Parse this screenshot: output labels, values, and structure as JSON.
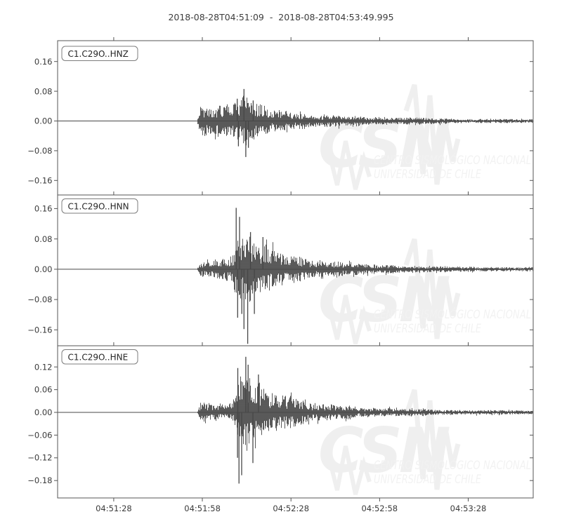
{
  "title": "2018-08-28T04:51:09  -  2018-08-28T04:53:49.995",
  "colors": {
    "background": "#ffffff",
    "trace": "#474747",
    "frame": "#555555",
    "tick_label": "#3a3a3a",
    "watermark_logo": "#efefef",
    "watermark_text": "#f2f2f2"
  },
  "watermark": {
    "logo": "CSN",
    "line1": "CENTRO SISMOLÓGICO NACIONAL",
    "line2": "UNIVERSIDAD DE CHILE"
  },
  "chart_data": {
    "type": "line",
    "subtype": "seismogram-3-panels",
    "title": "2018-08-28T04:51:09  -  2018-08-28T04:53:49.995",
    "x_start": "2018-08-28T04:51:09",
    "x_end": "2018-08-28T04:53:49.995",
    "duration_s": 160.995,
    "grid": false,
    "legend": false,
    "xticks": [
      {
        "t": 19,
        "label": "04:51:28"
      },
      {
        "t": 49,
        "label": "04:51:58"
      },
      {
        "t": 79,
        "label": "04:52:28"
      },
      {
        "t": 109,
        "label": "04:52:58"
      },
      {
        "t": 139,
        "label": "04:53:28"
      }
    ],
    "panels": [
      {
        "label": "C1.C29O..HNZ",
        "ylim": [
          -0.199,
          0.216
        ],
        "yticks": [
          {
            "v": 0.16,
            "label": "0.16"
          },
          {
            "v": 0.08,
            "label": "0.08"
          },
          {
            "v": 0.0,
            "label": "0.00"
          },
          {
            "v": -0.08,
            "label": "−0.08"
          },
          {
            "v": -0.16,
            "label": "−0.16"
          }
        ],
        "onset_s": 47.5,
        "peak_value": 0.086,
        "peak_time_s": 63.1,
        "seed": 101,
        "envelope": [
          [
            0,
            0.0012
          ],
          [
            47.2,
            0.0012
          ],
          [
            47.9,
            0.036
          ],
          [
            50,
            0.042
          ],
          [
            53,
            0.038
          ],
          [
            56,
            0.047
          ],
          [
            59,
            0.05
          ],
          [
            61.5,
            0.058
          ],
          [
            63.4,
            0.08
          ],
          [
            65,
            0.056
          ],
          [
            68,
            0.046
          ],
          [
            71,
            0.037
          ],
          [
            75,
            0.029
          ],
          [
            80,
            0.022
          ],
          [
            86,
            0.018
          ],
          [
            93,
            0.016
          ],
          [
            102,
            0.013
          ],
          [
            112,
            0.01
          ],
          [
            125,
            0.008
          ],
          [
            140,
            0.006
          ],
          [
            161,
            0.005
          ]
        ],
        "spikes": [
          [
            63.1,
            0.086
          ],
          [
            63.7,
            -0.097
          ],
          [
            60.8,
            0.06
          ],
          [
            61.2,
            -0.068
          ],
          [
            64.6,
            -0.072
          ],
          [
            66.2,
            0.055
          ]
        ]
      },
      {
        "label": "C1.C29O..HNN",
        "ylim": [
          -0.202,
          0.196
        ],
        "yticks": [
          {
            "v": 0.16,
            "label": "0.16"
          },
          {
            "v": 0.08,
            "label": "0.08"
          },
          {
            "v": 0.0,
            "label": "0.00"
          },
          {
            "v": -0.08,
            "label": "−0.08"
          },
          {
            "v": -0.16,
            "label": "−0.16"
          }
        ],
        "onset_s": 47.5,
        "peak_value": 0.162,
        "peak_time_s": 60.45,
        "min_value": -0.197,
        "min_time_s": 64.35,
        "seed": 202,
        "envelope": [
          [
            0,
            0.0012
          ],
          [
            47.2,
            0.0012
          ],
          [
            47.9,
            0.02
          ],
          [
            50,
            0.024
          ],
          [
            53.5,
            0.026
          ],
          [
            56.5,
            0.029
          ],
          [
            59.3,
            0.042
          ],
          [
            60.6,
            0.105
          ],
          [
            62,
            0.1
          ],
          [
            64,
            0.092
          ],
          [
            66,
            0.079
          ],
          [
            68.5,
            0.066
          ],
          [
            71,
            0.057
          ],
          [
            74,
            0.049
          ],
          [
            78,
            0.04
          ],
          [
            83,
            0.031
          ],
          [
            88,
            0.025
          ],
          [
            95,
            0.019
          ],
          [
            105,
            0.0135
          ],
          [
            115,
            0.011
          ],
          [
            130,
            0.008
          ],
          [
            145,
            0.0065
          ],
          [
            161,
            0.0055
          ]
        ],
        "spikes": [
          [
            60.45,
            0.162
          ],
          [
            60.95,
            -0.128
          ],
          [
            61.6,
            0.138
          ],
          [
            62.35,
            -0.118
          ],
          [
            63.1,
            -0.158
          ],
          [
            64.35,
            -0.197
          ],
          [
            65.3,
            0.098
          ],
          [
            66.6,
            -0.118
          ],
          [
            69.5,
            0.085
          ]
        ]
      },
      {
        "label": "C1.C29O..HNE",
        "ylim": [
          -0.226,
          0.176
        ],
        "yticks": [
          {
            "v": 0.12,
            "label": "0.12"
          },
          {
            "v": 0.06,
            "label": "0.06"
          },
          {
            "v": 0.0,
            "label": "0.00"
          },
          {
            "v": -0.06,
            "label": "−0.06"
          },
          {
            "v": -0.12,
            "label": "−0.12"
          },
          {
            "v": -0.18,
            "label": "−0.18"
          }
        ],
        "onset_s": 47.5,
        "peak_value": 0.147,
        "peak_time_s": 63.7,
        "min_value": -0.188,
        "min_time_s": 61.4,
        "seed": 303,
        "envelope": [
          [
            0,
            0.0012
          ],
          [
            47.2,
            0.0012
          ],
          [
            47.9,
            0.02
          ],
          [
            50,
            0.024
          ],
          [
            54,
            0.021
          ],
          [
            57,
            0.024
          ],
          [
            59.6,
            0.032
          ],
          [
            60.6,
            0.072
          ],
          [
            61.6,
            0.102
          ],
          [
            63.2,
            0.104
          ],
          [
            65,
            0.094
          ],
          [
            67,
            0.083
          ],
          [
            69,
            0.071
          ],
          [
            72,
            0.06
          ],
          [
            75,
            0.051
          ],
          [
            79,
            0.043
          ],
          [
            84,
            0.03
          ],
          [
            90,
            0.024
          ],
          [
            97,
            0.018
          ],
          [
            105,
            0.0135
          ],
          [
            112,
            0.012
          ],
          [
            120,
            0.009
          ],
          [
            135,
            0.0065
          ],
          [
            150,
            0.0052
          ],
          [
            161,
            0.0048
          ]
        ],
        "spikes": [
          [
            63.7,
            0.147
          ],
          [
            61.4,
            -0.188
          ],
          [
            62.3,
            -0.166
          ],
          [
            64.5,
            0.126
          ],
          [
            66.1,
            -0.134
          ],
          [
            61.0,
            0.117
          ],
          [
            68.0,
            0.1
          ],
          [
            60.9,
            -0.12
          ]
        ]
      }
    ]
  }
}
